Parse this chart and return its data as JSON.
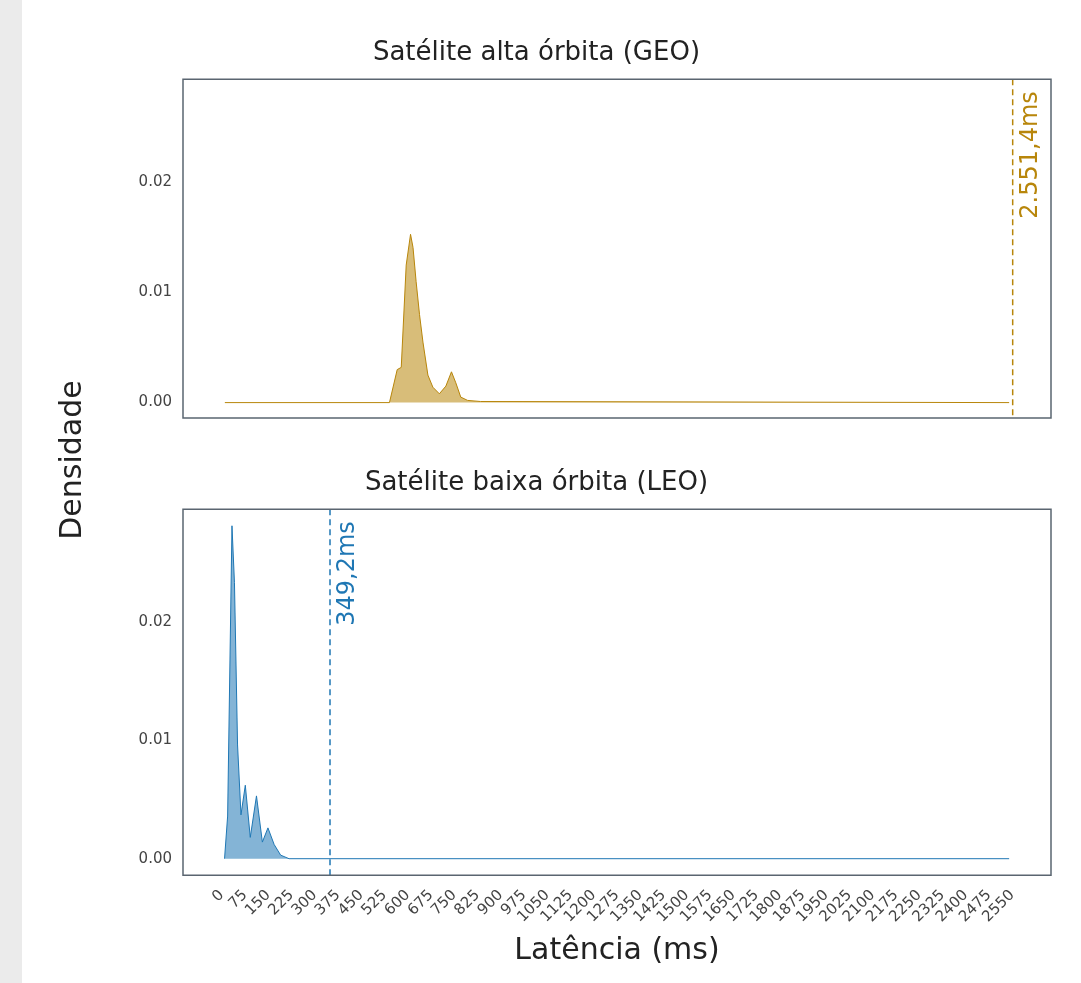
{
  "chart_data": [
    {
      "type": "area",
      "title": "Satélite alta órbita (GEO)",
      "ylabel": "Densidade",
      "x": [
        10,
        541,
        566,
        579,
        595,
        609,
        617,
        627,
        638,
        649,
        665,
        681,
        702,
        723,
        741,
        755,
        771,
        793,
        835,
        2540
      ],
      "series": [
        {
          "color": "#b8860b",
          "values": [
            0,
            0,
            0.003,
            0.0032,
            0.0125,
            0.0153,
            0.0141,
            0.011,
            0.008,
            0.0055,
            0.0025,
            0.0014,
            0.0008,
            0.0015,
            0.0028,
            0.0018,
            0.0005,
            0.0002,
            0.0001,
            0
          ]
        }
      ],
      "xlim": [
        -125,
        2675
      ],
      "ylim": [
        -0.0014,
        0.0294
      ],
      "yticks": [
        {
          "value": 0,
          "label": "0.00"
        },
        {
          "value": 0.01,
          "label": "0.01"
        },
        {
          "value": 0.02,
          "label": "0.02"
        }
      ],
      "ref_lines": [
        {
          "axis": "x",
          "value": 2551.4,
          "label": "2.551,4ms",
          "color": "#b8860b",
          "line_style": "dashed"
        }
      ],
      "tick_labels": "y",
      "grid": false,
      "legend": false
    },
    {
      "type": "area",
      "title": "Satélite baixa órbita (LEO)",
      "xlabel": "Latência (ms)",
      "x": [
        9,
        19,
        33,
        41,
        51,
        62,
        76,
        92,
        112,
        131,
        149,
        169,
        190,
        217,
        2540
      ],
      "series": [
        {
          "color": "#1f77b4",
          "values": [
            0,
            0.0036,
            0.0281,
            0.0233,
            0.0096,
            0.0037,
            0.0062,
            0.0018,
            0.0053,
            0.0014,
            0.0026,
            0.0012,
            0.0003,
            0,
            0
          ]
        }
      ],
      "xlim": [
        -125,
        2675
      ],
      "ylim": [
        -0.0014,
        0.0295
      ],
      "xticks": [
        0,
        75,
        150,
        225,
        300,
        375,
        450,
        525,
        600,
        675,
        750,
        825,
        900,
        975,
        1050,
        1125,
        1200,
        1275,
        1350,
        1425,
        1500,
        1575,
        1650,
        1725,
        1800,
        1875,
        1950,
        2025,
        2100,
        2175,
        2250,
        2325,
        2400,
        2475,
        2550
      ],
      "yticks": [
        {
          "value": 0,
          "label": "0.00"
        },
        {
          "value": 0.01,
          "label": "0.01"
        },
        {
          "value": 0.02,
          "label": "0.02"
        }
      ],
      "ref_lines": [
        {
          "axis": "x",
          "value": 349.2,
          "label": "349,2ms",
          "color": "#1f77b4",
          "line_style": "dashed"
        }
      ],
      "grid": false,
      "legend": false
    }
  ]
}
